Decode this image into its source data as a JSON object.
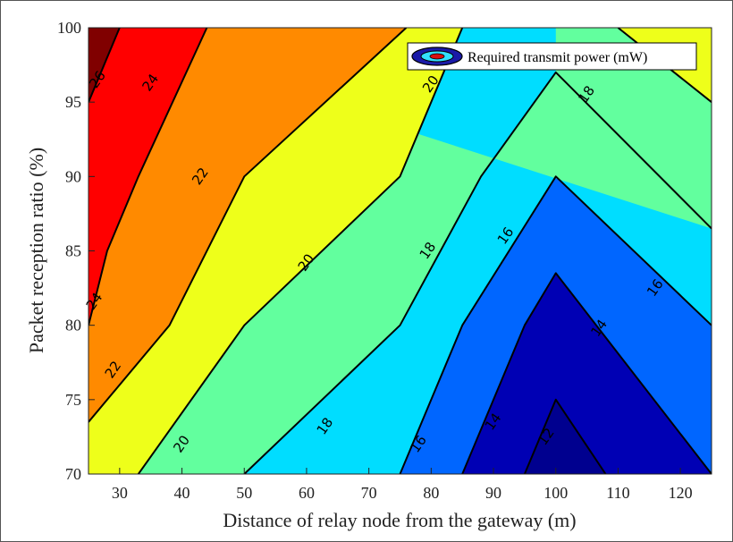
{
  "chart_data": {
    "type": "contour",
    "xlabel": "Distance of relay node from the gateway (m)",
    "ylabel": "Packet reception ratio (%)",
    "xlim": [
      25,
      125
    ],
    "ylim": [
      70,
      100
    ],
    "x_ticks": [
      30,
      40,
      50,
      60,
      70,
      80,
      90,
      100,
      110,
      120
    ],
    "y_ticks": [
      70,
      75,
      80,
      85,
      90,
      95,
      100
    ],
    "legend": {
      "label": "Required transmit power (mW)",
      "position": "top-right"
    },
    "levels": [
      12,
      14,
      16,
      18,
      20,
      22,
      24,
      26
    ],
    "level_colors": {
      "below_12": "#00008f",
      "12": "#0000b4",
      "14": "#0066ff",
      "16": "#00ddff",
      "18": "#62ff9e",
      "20": "#eeff1a",
      "22": "#ff8a00",
      "24": "#ff0000",
      "26": "#800000"
    },
    "contours": [
      {
        "level": 12,
        "points": [
          [
            95,
            70
          ],
          [
            100,
            75
          ],
          [
            108,
            70
          ]
        ]
      },
      {
        "level": 14,
        "points": [
          [
            85,
            70
          ],
          [
            95,
            80
          ],
          [
            100,
            83.5
          ],
          [
            125,
            70
          ]
        ]
      },
      {
        "level": 16,
        "points": [
          [
            75,
            70
          ],
          [
            85,
            80
          ],
          [
            100,
            90
          ],
          [
            125,
            80
          ]
        ]
      },
      {
        "level": 18,
        "points": [
          [
            50,
            70
          ],
          [
            75,
            80
          ],
          [
            88,
            90
          ],
          [
            100,
            97
          ],
          [
            125,
            86.5
          ]
        ]
      },
      {
        "level": 20,
        "points": [
          [
            33,
            70
          ],
          [
            50,
            80
          ],
          [
            75,
            90
          ],
          [
            85,
            100
          ]
        ]
      },
      {
        "level": 20,
        "points": [
          [
            110,
            100
          ],
          [
            125,
            95
          ]
        ]
      },
      {
        "level": 22,
        "points": [
          [
            25,
            73.5
          ],
          [
            38,
            80
          ],
          [
            50,
            90
          ],
          [
            76,
            100
          ]
        ]
      },
      {
        "level": 24,
        "points": [
          [
            25,
            80
          ],
          [
            28,
            85
          ],
          [
            33,
            90
          ],
          [
            44,
            100
          ]
        ]
      },
      {
        "level": 26,
        "points": [
          [
            25,
            95
          ],
          [
            30,
            100
          ]
        ]
      }
    ],
    "contour_labels": [
      {
        "text": "12",
        "at": [
          98.5,
          72.5
        ]
      },
      {
        "text": "14",
        "at": [
          90,
          73.5
        ]
      },
      {
        "text": "14",
        "at": [
          107,
          79.8
        ]
      },
      {
        "text": "16",
        "at": [
          78,
          72
        ]
      },
      {
        "text": "16",
        "at": [
          92,
          86
        ]
      },
      {
        "text": "16",
        "at": [
          116,
          82.5
        ]
      },
      {
        "text": "18",
        "at": [
          63,
          73.2
        ]
      },
      {
        "text": "18",
        "at": [
          79.5,
          85
        ]
      },
      {
        "text": "18",
        "at": [
          105,
          95.5
        ]
      },
      {
        "text": "20",
        "at": [
          40,
          72
        ]
      },
      {
        "text": "20",
        "at": [
          60,
          84.2
        ]
      },
      {
        "text": "20",
        "at": [
          80,
          96.2
        ]
      },
      {
        "text": "22",
        "at": [
          29,
          77
        ]
      },
      {
        "text": "22",
        "at": [
          43,
          90
        ]
      },
      {
        "text": "24",
        "at": [
          26,
          81.6
        ]
      },
      {
        "text": "24",
        "at": [
          35,
          96.3
        ]
      },
      {
        "text": "26",
        "at": [
          26.5,
          96.5
        ]
      }
    ]
  }
}
